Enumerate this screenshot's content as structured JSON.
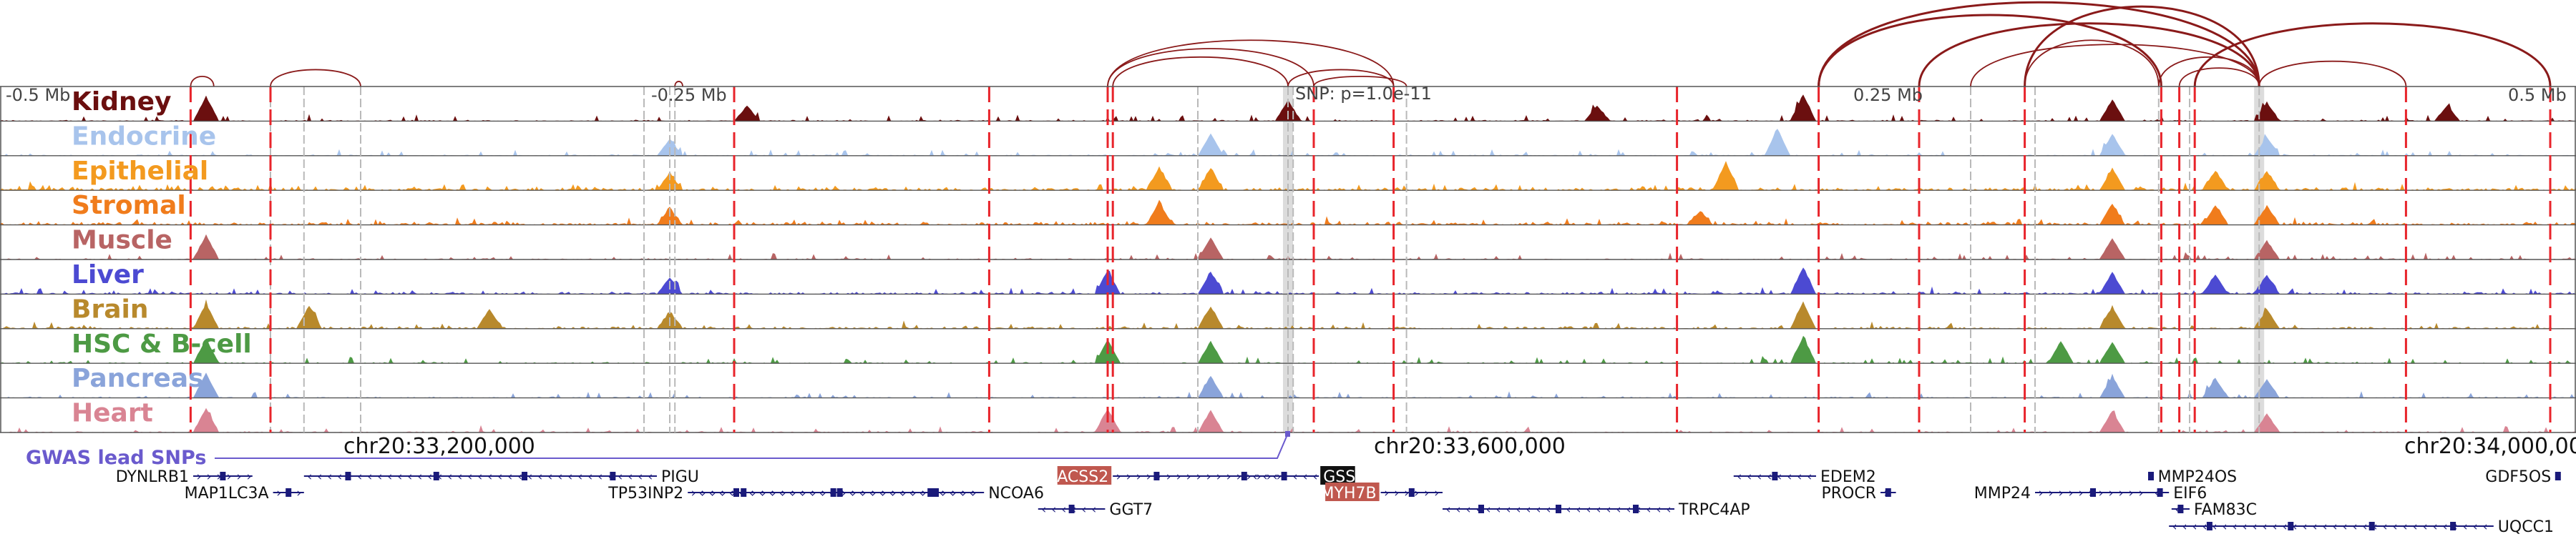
{
  "browser": {
    "scale_labels": [
      "-0.5 Mb",
      "-0.25 Mb",
      "0.25 Mb",
      "0.5 Mb"
    ],
    "snp_label": "SNP: p=1.0e-11",
    "gwas_label": "GWAS lead SNPs",
    "coordinates": [
      "chr20:33,200,000",
      "chr20:33,600,000",
      "chr20:34,000,000"
    ]
  },
  "tracks": [
    {
      "name": "Kidney",
      "color": "#6b0f0f",
      "profile": "low",
      "peaks": [
        0.08,
        0.29,
        0.5,
        0.62,
        0.7,
        0.82,
        0.88,
        0.95
      ]
    },
    {
      "name": "Endocrine",
      "color": "#a8c4ec",
      "profile": "low",
      "peaks": [
        0.26,
        0.47,
        0.69,
        0.82,
        0.88
      ]
    },
    {
      "name": "Epithelial",
      "color": "#f39a1f",
      "profile": "high",
      "peaks": [
        0.26,
        0.45,
        0.47,
        0.67,
        0.82,
        0.86,
        0.88
      ]
    },
    {
      "name": "Stromal",
      "color": "#f07c1c",
      "profile": "high",
      "peaks": [
        0.26,
        0.45,
        0.66,
        0.82,
        0.86,
        0.88
      ]
    },
    {
      "name": "Muscle",
      "color": "#b86464",
      "profile": "low",
      "peaks": [
        0.08,
        0.47,
        0.82,
        0.88
      ]
    },
    {
      "name": "Liver",
      "color": "#4c4ad2",
      "profile": "mid",
      "peaks": [
        0.26,
        0.43,
        0.47,
        0.7,
        0.82,
        0.86,
        0.88
      ]
    },
    {
      "name": "Brain",
      "color": "#b8892c",
      "profile": "mid",
      "peaks": [
        0.08,
        0.12,
        0.19,
        0.26,
        0.47,
        0.7,
        0.82,
        0.88
      ]
    },
    {
      "name": "HSC & B-cell",
      "color": "#4d9a44",
      "profile": "low",
      "peaks": [
        0.08,
        0.43,
        0.47,
        0.7,
        0.8,
        0.82
      ]
    },
    {
      "name": "Pancreas",
      "color": "#8aa4da",
      "profile": "low",
      "peaks": [
        0.08,
        0.47,
        0.82,
        0.86,
        0.88
      ]
    },
    {
      "name": "Heart",
      "color": "#d98493",
      "profile": "low",
      "peaks": [
        0.08,
        0.43,
        0.47,
        0.82,
        0.88
      ]
    }
  ],
  "highlights": {
    "red_lines": [
      0.074,
      0.105,
      0.285,
      0.384,
      0.43,
      0.432,
      0.51,
      0.541,
      0.651,
      0.706,
      0.745,
      0.786,
      0.839,
      0.846,
      0.852,
      0.934,
      0.99
    ],
    "gray_lines": [
      0.105,
      0.118,
      0.14,
      0.25,
      0.26,
      0.262,
      0.465,
      0.5,
      0.502,
      0.546,
      0.765,
      0.79,
      0.838,
      0.85,
      0.877
    ],
    "gray_bands": [
      0.5,
      0.877
    ]
  },
  "loops": [
    {
      "from": 0.074,
      "to": 0.083,
      "height": 0.12
    },
    {
      "from": 0.105,
      "to": 0.14,
      "height": 0.2
    },
    {
      "from": 0.262,
      "to": 0.265,
      "height": 0.06
    },
    {
      "from": 0.43,
      "to": 0.51,
      "height": 0.45
    },
    {
      "from": 0.43,
      "to": 0.541,
      "height": 0.55
    },
    {
      "from": 0.432,
      "to": 0.5,
      "height": 0.35
    },
    {
      "from": 0.5,
      "to": 0.541,
      "height": 0.2
    },
    {
      "from": 0.51,
      "to": 0.546,
      "height": 0.12
    },
    {
      "from": 0.706,
      "to": 0.877,
      "height": 1.0
    },
    {
      "from": 0.706,
      "to": 0.839,
      "height": 0.85
    },
    {
      "from": 0.745,
      "to": 0.877,
      "height": 0.75
    },
    {
      "from": 0.765,
      "to": 0.877,
      "height": 0.5
    },
    {
      "from": 0.786,
      "to": 0.877,
      "height": 0.95
    },
    {
      "from": 0.786,
      "to": 0.838,
      "height": 0.55
    },
    {
      "from": 0.838,
      "to": 0.877,
      "height": 0.35
    },
    {
      "from": 0.846,
      "to": 0.877,
      "height": 0.22
    },
    {
      "from": 0.852,
      "to": 0.99,
      "height": 0.75
    },
    {
      "from": 0.877,
      "to": 0.934,
      "height": 0.3
    }
  ],
  "genes": [
    {
      "name": "DYNLRB1",
      "start": 0.075,
      "end": 0.098,
      "row": 0,
      "dir": ">",
      "label_side": "left",
      "highlight": ""
    },
    {
      "name": "MAP1LC3A",
      "start": 0.106,
      "end": 0.118,
      "row": 1,
      "dir": ">",
      "label_side": "left",
      "highlight": ""
    },
    {
      "name": "PIGU",
      "start": 0.118,
      "end": 0.255,
      "row": 0,
      "dir": "<",
      "label_side": "right",
      "highlight": ""
    },
    {
      "name": "TP53INP2",
      "start": 0.267,
      "end": 0.38,
      "row": 1,
      "dir": ">",
      "label_side": "left",
      "highlight": ""
    },
    {
      "name": "NCOA6",
      "start": 0.27,
      "end": 0.382,
      "row": 1,
      "dir": "<",
      "label_side": "right",
      "highlight": ""
    },
    {
      "name": "ACSS2",
      "start": 0.432,
      "end": 0.5,
      "row": 0,
      "dir": ">",
      "label_side": "left",
      "highlight": "#c0584f"
    },
    {
      "name": "GSS",
      "start": 0.485,
      "end": 0.512,
      "row": 0,
      "dir": "<",
      "label_side": "right",
      "highlight": "#111111"
    },
    {
      "name": "GGT7",
      "start": 0.403,
      "end": 0.429,
      "row": 2,
      "dir": "<",
      "label_side": "right",
      "highlight": ""
    },
    {
      "name": "MYH7B",
      "start": 0.536,
      "end": 0.56,
      "row": 1,
      "dir": ">",
      "label_side": "left",
      "highlight": "#c0584f"
    },
    {
      "name": "TRPC4AP",
      "start": 0.56,
      "end": 0.65,
      "row": 2,
      "dir": "<",
      "label_side": "right",
      "highlight": ""
    },
    {
      "name": "EDEM2",
      "start": 0.673,
      "end": 0.705,
      "row": 0,
      "dir": "<",
      "label_side": "right",
      "highlight": ""
    },
    {
      "name": "PROCR",
      "start": 0.73,
      "end": 0.736,
      "row": 1,
      "dir": ">",
      "label_side": "left",
      "highlight": ""
    },
    {
      "name": "MMP24",
      "start": 0.79,
      "end": 0.835,
      "row": 1,
      "dir": ">",
      "label_side": "left",
      "highlight": ""
    },
    {
      "name": "MMP24OS",
      "start": 0.834,
      "end": 0.836,
      "row": 0,
      "dir": "<",
      "label_side": "right",
      "highlight": ""
    },
    {
      "name": "EIF6",
      "start": 0.835,
      "end": 0.842,
      "row": 1,
      "dir": "<",
      "label_side": "right",
      "highlight": ""
    },
    {
      "name": "FAM83C",
      "start": 0.843,
      "end": 0.85,
      "row": 2,
      "dir": "<",
      "label_side": "right",
      "highlight": ""
    },
    {
      "name": "UQCC1",
      "start": 0.842,
      "end": 0.968,
      "row": 3,
      "dir": "<",
      "label_side": "right",
      "highlight": ""
    },
    {
      "name": "GDF5OS",
      "start": 0.992,
      "end": 0.994,
      "row": 0,
      "dir": ">",
      "label_side": "left",
      "highlight": ""
    }
  ]
}
